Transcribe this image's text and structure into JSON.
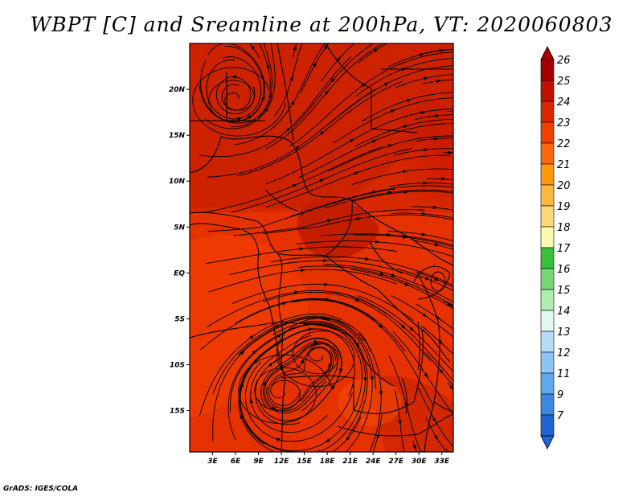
{
  "title": "WBPT [C] and Sreamline at 200hPa, VT: 2020060803",
  "credit": "GrADS: IGES/COLA",
  "map": {
    "lon_range": [
      0,
      34.5
    ],
    "lat_range": [
      -19.5,
      25
    ],
    "lat_ticks": [
      {
        "value": 20,
        "label": "20N"
      },
      {
        "value": 15,
        "label": "15N"
      },
      {
        "value": 10,
        "label": "10N"
      },
      {
        "value": 5,
        "label": "5N"
      },
      {
        "value": 0,
        "label": "EQ"
      },
      {
        "value": -5,
        "label": "5S"
      },
      {
        "value": -10,
        "label": "10S"
      },
      {
        "value": -15,
        "label": "15S"
      }
    ],
    "lon_ticks": [
      {
        "value": 3,
        "label": "3E"
      },
      {
        "value": 6,
        "label": "6E"
      },
      {
        "value": 9,
        "label": "9E"
      },
      {
        "value": 12,
        "label": "12E"
      },
      {
        "value": 15,
        "label": "15E"
      },
      {
        "value": 18,
        "label": "18E"
      },
      {
        "value": 21,
        "label": "21E"
      },
      {
        "value": 24,
        "label": "24E"
      },
      {
        "value": 27,
        "label": "27E"
      },
      {
        "value": 30,
        "label": "30E"
      },
      {
        "value": 33,
        "label": "33E"
      }
    ],
    "vortices": [
      {
        "lon": 6,
        "lat": 19,
        "name": "sahara-vortex"
      },
      {
        "lon": 12,
        "lat": -13,
        "name": "angola-vortex"
      },
      {
        "lon": 17,
        "lat": -9,
        "name": "congo-vortex"
      }
    ]
  },
  "colorbar": {
    "levels": [
      {
        "label": "26",
        "color": "#a50000"
      },
      {
        "label": "25",
        "color": "#c01000"
      },
      {
        "label": "24",
        "color": "#d82800"
      },
      {
        "label": "23",
        "color": "#f04000"
      },
      {
        "label": "22",
        "color": "#f86810"
      },
      {
        "label": "21",
        "color": "#fc9810"
      },
      {
        "label": "20",
        "color": "#fcb840"
      },
      {
        "label": "19",
        "color": "#fcd878"
      },
      {
        "label": "18",
        "color": "#fcf8b0"
      },
      {
        "label": "17",
        "color": "#38c038"
      },
      {
        "label": "16",
        "color": "#78d878"
      },
      {
        "label": "15",
        "color": "#b0ecb0"
      },
      {
        "label": "14",
        "color": "#e0f8f0"
      },
      {
        "label": "13",
        "color": "#b8dcf8"
      },
      {
        "label": "12",
        "color": "#8cc4f4"
      },
      {
        "label": "11",
        "color": "#60a8ec"
      },
      {
        "label": "9",
        "color": "#3c88e0"
      },
      {
        "label": "7",
        "color": "#1e64d0"
      }
    ],
    "top_arrow_color": "#a50000",
    "bottom_arrow_color": "#2064d8"
  }
}
